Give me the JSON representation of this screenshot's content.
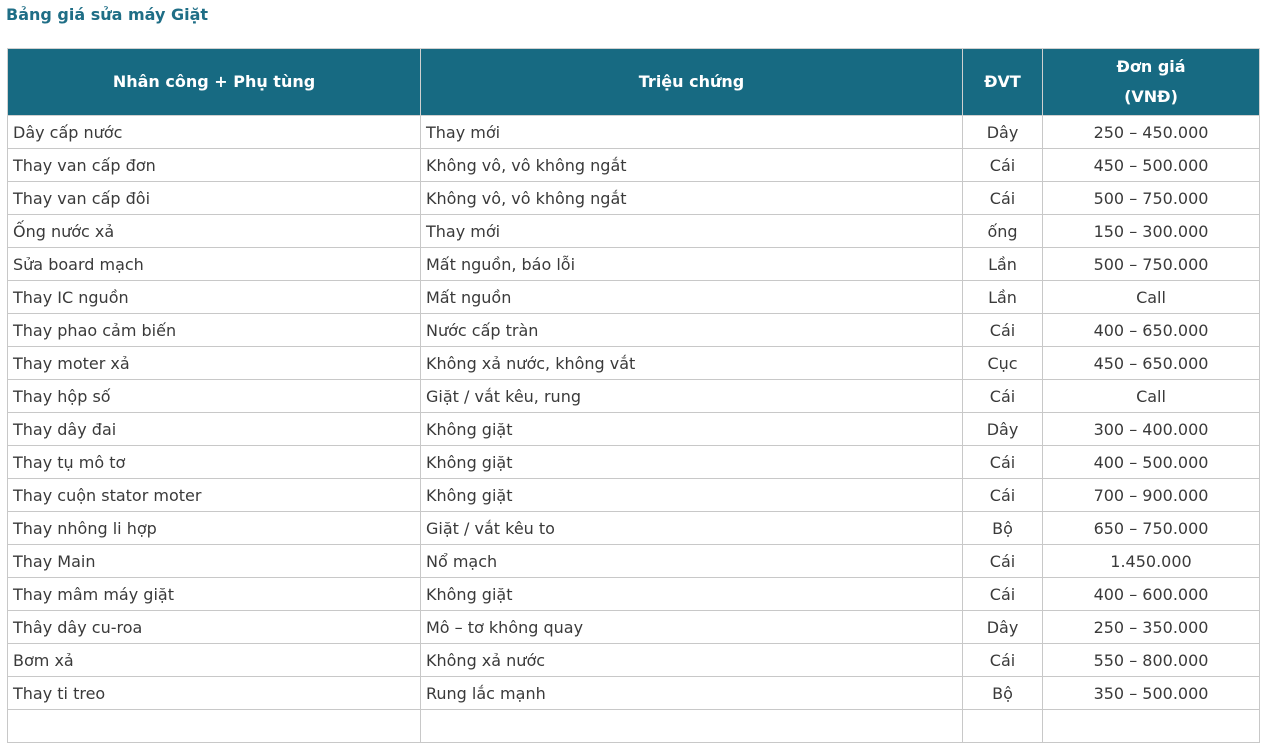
{
  "title": "Bảng giá sửa máy Giặt",
  "colors": {
    "header_bg": "#176a82",
    "title": "#1f6e86"
  },
  "table": {
    "headers": [
      "Nhân công + Phụ tùng",
      "Triệu chứng",
      "ĐVT",
      "Đơn giá",
      "(VNĐ)"
    ],
    "rows": [
      [
        "Dây cấp nước",
        "Thay mới",
        "Dây",
        "250 – 450.000"
      ],
      [
        "Thay van cấp đơn",
        "Không vô, vô không ngắt",
        "Cái",
        "450 – 500.000"
      ],
      [
        "Thay van cấp đôi",
        "Không vô, vô không ngắt",
        "Cái",
        "500 – 750.000"
      ],
      [
        "Ống nước xả",
        "Thay mới",
        "ống",
        "150 – 300.000"
      ],
      [
        "Sửa board mạch",
        "Mất nguồn, báo lỗi",
        "Lần",
        "500 – 750.000"
      ],
      [
        "Thay IC nguồn",
        "Mất nguồn",
        "Lần",
        "Call"
      ],
      [
        "Thay phao cảm biến",
        "Nước cấp tràn",
        "Cái",
        "400 – 650.000"
      ],
      [
        "Thay moter xả",
        "Không xả nước, không vắt",
        "Cục",
        "450 – 650.000"
      ],
      [
        "Thay hộp số",
        "Giặt / vắt kêu, rung",
        "Cái",
        "Call"
      ],
      [
        "Thay dây đai",
        "Không giặt",
        "Dây",
        "300 – 400.000"
      ],
      [
        "Thay tụ mô tơ",
        "Không giặt",
        "Cái",
        "400 – 500.000"
      ],
      [
        "Thay cuộn stator moter",
        "Không giặt",
        "Cái",
        "700 – 900.000"
      ],
      [
        "Thay nhông li hợp",
        "Giặt / vắt kêu to",
        "Bộ",
        "650 – 750.000"
      ],
      [
        "Thay Main",
        "Nổ mạch",
        "Cái",
        "1.450.000"
      ],
      [
        "Thay mâm máy giặt",
        "Không giặt",
        "Cái",
        "400 – 600.000"
      ],
      [
        "Thây dây cu-roa",
        "Mô – tơ không quay",
        "Dây",
        "250 – 350.000"
      ],
      [
        "Bơm xả",
        "Không xả nước",
        "Cái",
        "550 – 800.000"
      ],
      [
        "Thay ti treo",
        "Rung lắc mạnh",
        "Bộ",
        "350 – 500.000"
      ]
    ]
  }
}
